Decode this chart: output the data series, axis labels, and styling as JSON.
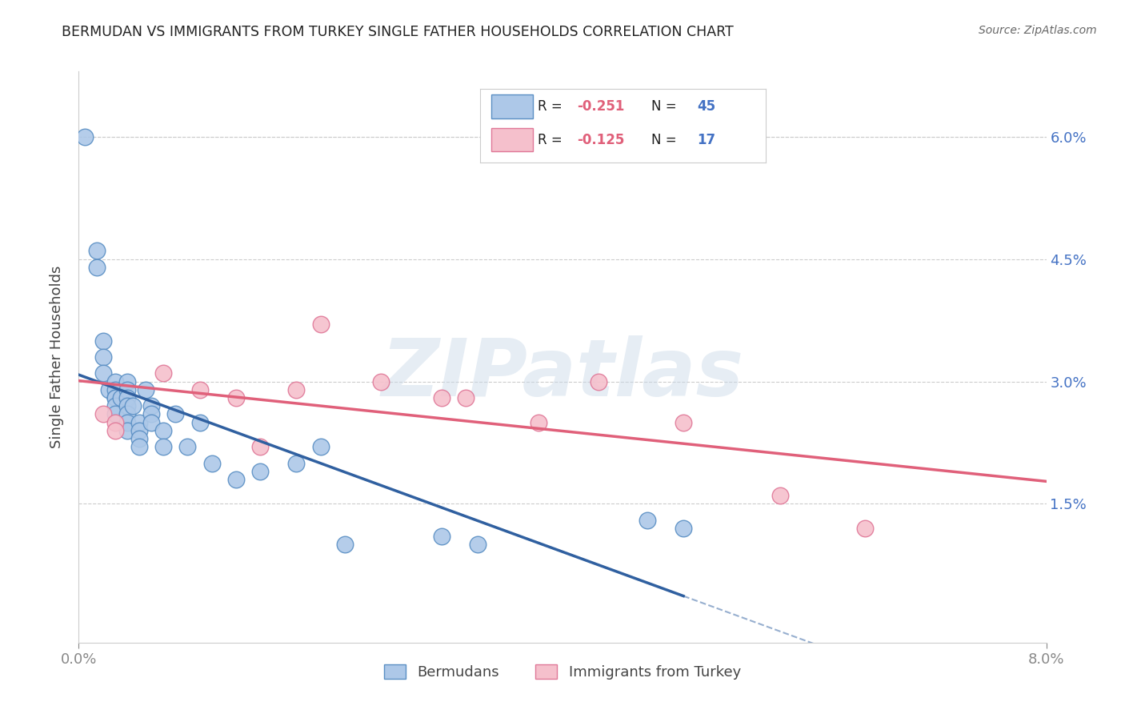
{
  "title": "BERMUDAN VS IMMIGRANTS FROM TURKEY SINGLE FATHER HOUSEHOLDS CORRELATION CHART",
  "source": "Source: ZipAtlas.com",
  "ylabel": "Single Father Households",
  "watermark": "ZIPatlas",
  "blue_R": -0.251,
  "blue_N": 45,
  "pink_R": -0.125,
  "pink_N": 17,
  "blue_label": "Bermudans",
  "pink_label": "Immigrants from Turkey",
  "blue_color": "#adc8e8",
  "blue_edge_color": "#5a8fc4",
  "blue_line_color": "#3060a0",
  "pink_color": "#f5c0cc",
  "pink_edge_color": "#e07898",
  "pink_line_color": "#e0607a",
  "xmin": 0.0,
  "xmax": 0.08,
  "ymin": -0.002,
  "ymax": 0.068,
  "ytick_positions": [
    0.015,
    0.03,
    0.045,
    0.06
  ],
  "ytick_labels": [
    "1.5%",
    "3.0%",
    "4.5%",
    "6.0%"
  ],
  "blue_points_x": [
    0.0005,
    0.0015,
    0.0015,
    0.002,
    0.002,
    0.002,
    0.0025,
    0.003,
    0.003,
    0.003,
    0.003,
    0.003,
    0.003,
    0.0035,
    0.004,
    0.004,
    0.004,
    0.004,
    0.004,
    0.004,
    0.004,
    0.0045,
    0.005,
    0.005,
    0.005,
    0.005,
    0.0055,
    0.006,
    0.006,
    0.006,
    0.007,
    0.007,
    0.008,
    0.009,
    0.01,
    0.011,
    0.013,
    0.015,
    0.018,
    0.02,
    0.022,
    0.03,
    0.033,
    0.047,
    0.05
  ],
  "blue_points_y": [
    0.06,
    0.044,
    0.046,
    0.035,
    0.033,
    0.031,
    0.029,
    0.03,
    0.029,
    0.028,
    0.028,
    0.027,
    0.026,
    0.028,
    0.03,
    0.029,
    0.028,
    0.027,
    0.026,
    0.025,
    0.024,
    0.027,
    0.025,
    0.024,
    0.023,
    0.022,
    0.029,
    0.027,
    0.026,
    0.025,
    0.024,
    0.022,
    0.026,
    0.022,
    0.025,
    0.02,
    0.018,
    0.019,
    0.02,
    0.022,
    0.01,
    0.011,
    0.01,
    0.013,
    0.012
  ],
  "pink_points_x": [
    0.002,
    0.003,
    0.003,
    0.007,
    0.01,
    0.013,
    0.015,
    0.018,
    0.02,
    0.025,
    0.03,
    0.032,
    0.038,
    0.043,
    0.05,
    0.058,
    0.065
  ],
  "pink_points_y": [
    0.026,
    0.025,
    0.024,
    0.031,
    0.029,
    0.028,
    0.022,
    0.029,
    0.037,
    0.03,
    0.028,
    0.028,
    0.025,
    0.03,
    0.025,
    0.016,
    0.012
  ],
  "legend_R_color": "#e0607a",
  "legend_N_color": "#4472c4",
  "grid_color": "#cccccc",
  "grid_style": "--",
  "axis_color": "#888888",
  "title_color": "#222222",
  "label_color": "#444444",
  "right_tick_color": "#4472c4"
}
